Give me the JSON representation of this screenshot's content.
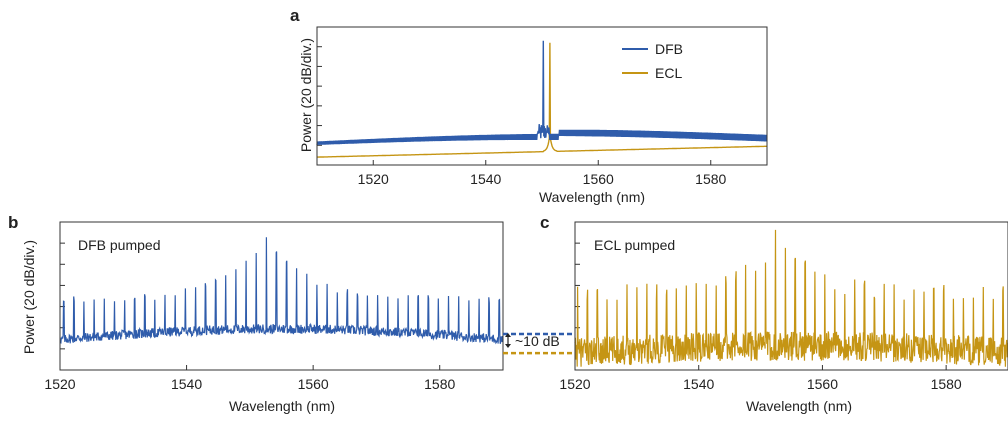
{
  "colors": {
    "dfb": "#2f5cab",
    "ecl": "#c59514",
    "axis": "#333333"
  },
  "chart_data": [
    {
      "panel_label": "a",
      "type": "line",
      "xlabel": "Wavelength (nm)",
      "ylabel": "Power (20 dB/div.)",
      "xlim": [
        1510,
        1590
      ],
      "ylim": [
        0,
        7
      ],
      "xticks": [
        "1520",
        "1540",
        "1560",
        "1580"
      ],
      "yticks": [
        1,
        2,
        3,
        4,
        5,
        6
      ],
      "legend_position": "top-right",
      "legend": [
        {
          "label": "DFB",
          "color_key": "dfb"
        },
        {
          "label": "ECL",
          "color_key": "ecl"
        }
      ],
      "series": [
        {
          "name": "DFB",
          "color_key": "dfb",
          "baseline_start": 1.05,
          "baseline_end": 1.3,
          "ripple_width": 0.28,
          "peak_x": 1550.2,
          "peak_y": 6.3,
          "secondary_peak_x": 1551.2,
          "secondary_peak_y": 1.9
        },
        {
          "name": "ECL",
          "color_key": "ecl",
          "baseline_start": 0.4,
          "baseline_end": 0.95,
          "peak_x": 1551.4,
          "peak_y": 6.2
        }
      ]
    },
    {
      "panel_label": "b",
      "type": "line",
      "annotation": "DFB pumped",
      "xlabel": "Wavelength (nm)",
      "ylabel": "Power (20 dB/div.)",
      "xlim": [
        1520,
        1590
      ],
      "ylim": [
        0,
        7
      ],
      "xticks": [
        "1520",
        "1540",
        "1560",
        "1580"
      ],
      "yticks": [
        1,
        2,
        3,
        4,
        5,
        6
      ],
      "series": [
        {
          "name": "DFB pumped comb",
          "color_key": "dfb",
          "floor_start": 1.4,
          "floor_end": 1.9,
          "noise": 0.45,
          "line_spacing_nm": 1.6,
          "center_nm": 1552.6,
          "center_peak": 6.6,
          "edge_peak": 3.5
        }
      ]
    },
    {
      "panel_label": "c",
      "type": "line",
      "annotation": "ECL pumped",
      "xlabel": "Wavelength (nm)",
      "xlim": [
        1520,
        1590
      ],
      "ylim": [
        0,
        7
      ],
      "xticks": [
        "1520",
        "1540",
        "1560",
        "1580"
      ],
      "yticks": [
        1,
        2,
        3,
        4,
        5,
        6
      ],
      "series": [
        {
          "name": "ECL pumped comb",
          "color_key": "ecl",
          "floor_start": 0.7,
          "floor_end": 1.0,
          "noise": 1.4,
          "line_spacing_nm": 1.6,
          "center_nm": 1552.4,
          "center_peak": 6.7,
          "edge_peak": 4.0
        }
      ]
    }
  ],
  "floor_difference": {
    "label": "~10 dB",
    "upper_value": 1.7,
    "lower_value": 0.8
  }
}
